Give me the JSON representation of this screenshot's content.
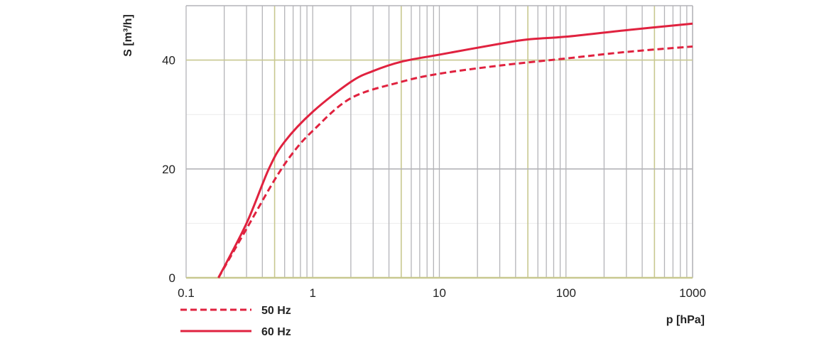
{
  "chart_data": {
    "type": "line",
    "title": "",
    "xlabel": "p [hPa]",
    "ylabel": "S [m³/h]",
    "x_scale": "log",
    "xlim": [
      0.1,
      1000
    ],
    "ylim": [
      0,
      50
    ],
    "x_ticks": [
      "0.1",
      "1",
      "10",
      "100",
      "1000"
    ],
    "x_tick_values": [
      0.1,
      1,
      10,
      100,
      1000
    ],
    "y_ticks": [
      "0",
      "20",
      "40"
    ],
    "y_tick_values": [
      0,
      20,
      40
    ],
    "grid": true,
    "legend_position": "bottom-left",
    "colors": {
      "series": "#e0223f",
      "grid": "#b4b4b8",
      "grid_accent": "#c8c890"
    },
    "series": [
      {
        "name": "50 Hz",
        "style": "dashed",
        "x": [
          0.18,
          0.3,
          0.5,
          0.7,
          1,
          2,
          5,
          10,
          30,
          100,
          300,
          1000
        ],
        "y": [
          0,
          9,
          18,
          23,
          27,
          33,
          36,
          37.5,
          39,
          40.3,
          41.5,
          42.5
        ]
      },
      {
        "name": "60 Hz",
        "style": "solid",
        "x": [
          0.18,
          0.3,
          0.45,
          0.6,
          1,
          2,
          3,
          5,
          10,
          30,
          50,
          100,
          300,
          1000
        ],
        "y": [
          0,
          10,
          20,
          25,
          30.5,
          36,
          38,
          39.7,
          41,
          43,
          43.8,
          44.3,
          45.5,
          46.7
        ]
      }
    ]
  }
}
